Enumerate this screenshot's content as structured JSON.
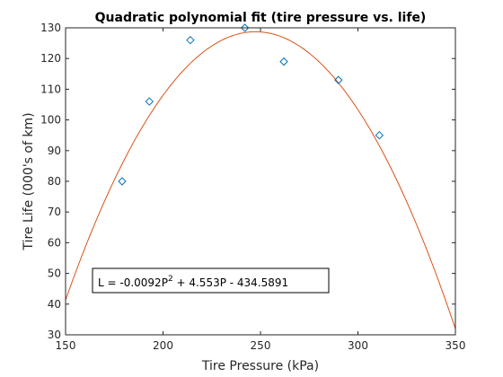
{
  "chart_data": {
    "type": "scatter",
    "title": "Quadratic polynomial fit (tire pressure vs. life)",
    "xlabel": "Tire Pressure (kPa)",
    "ylabel": "Tire Life (000's of km)",
    "xlim": [
      150,
      350
    ],
    "ylim": [
      30,
      130
    ],
    "xticks": [
      150,
      200,
      250,
      300,
      350
    ],
    "yticks": [
      30,
      40,
      50,
      60,
      70,
      80,
      90,
      100,
      110,
      120,
      130
    ],
    "grid": false,
    "points": {
      "x": [
        179,
        193,
        214,
        242,
        262,
        290,
        311
      ],
      "y": [
        80,
        106,
        126,
        130,
        119,
        113,
        95
      ]
    },
    "fit": {
      "coefficients": {
        "a": -0.0092,
        "b": 4.553,
        "c": -434.5891
      },
      "equation_prefix": "L = -0.0092P",
      "equation_exponent": "2",
      "equation_suffix": " + 4.553P - 434.5891"
    },
    "colors": {
      "fit_line": "#d95319",
      "marker": "#0072bd",
      "axis": "#262626"
    }
  }
}
